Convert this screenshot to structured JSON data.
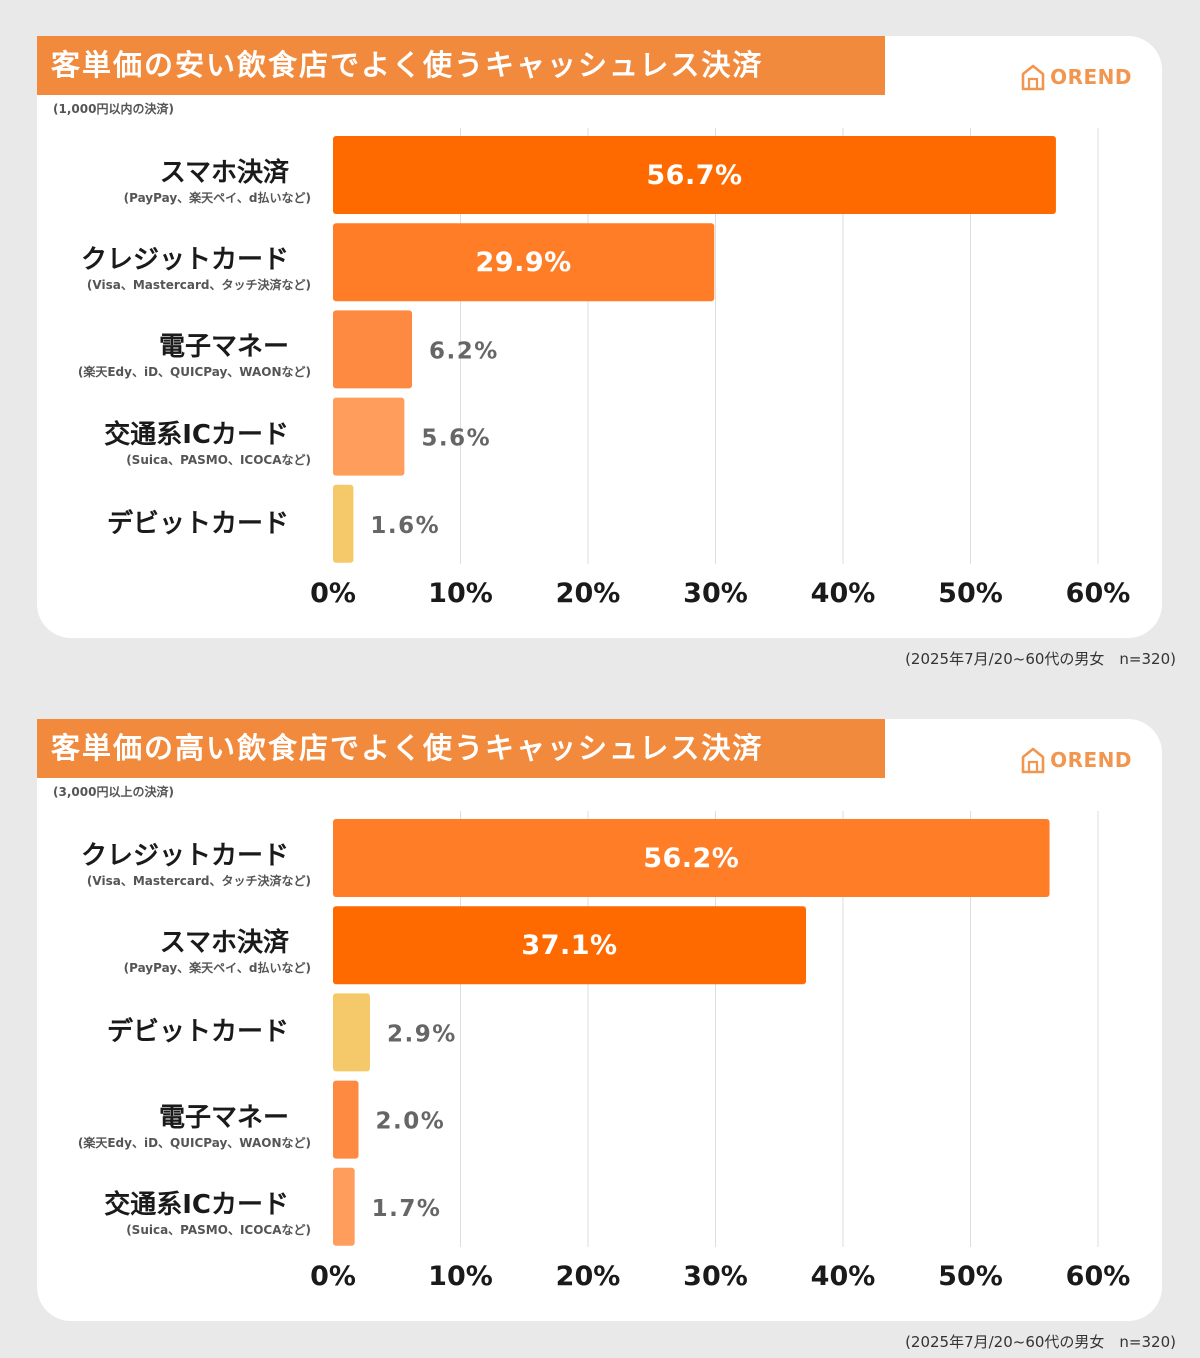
{
  "footnote": "(2025年7月/20~60代の男女　n=320)",
  "logo_text": "OREND",
  "colors": {
    "title_bg": "#f28a3d",
    "logo": "#f2964f",
    "grid": "#dddddd"
  },
  "chart_data": [
    {
      "type": "bar",
      "orientation": "horizontal",
      "title": "客単価の安い飲食店でよく使うキャッシュレス決済",
      "subtitle": "(1,000円以内の決済)",
      "categories": [
        "スマホ決済",
        "クレジットカード",
        "電子マネー",
        "交通系ICカード",
        "デビットカード"
      ],
      "category_notes": [
        "(PayPay、楽天ペイ、d払いなど)",
        "(Visa、Mastercard、タッチ決済など)",
        "(楽天Edy、iD、QUICPay、WAONなど)",
        "(Suica、PASMO、ICOCAなど)",
        ""
      ],
      "values": [
        56.7,
        29.9,
        6.2,
        5.6,
        1.6
      ],
      "value_labels": [
        "56.7%",
        "29.9%",
        "6.2%",
        "5.6%",
        "1.6%"
      ],
      "bar_colors": [
        "#ff6a00",
        "#ff7d26",
        "#fd8a40",
        "#ff9d5c",
        "#f5c96a"
      ],
      "xlim": [
        0,
        60
      ],
      "xticks": [
        0,
        10,
        20,
        30,
        40,
        50,
        60
      ],
      "xtick_labels": [
        "0%",
        "10%",
        "20%",
        "30%",
        "40%",
        "50%",
        "60%"
      ],
      "grid": true
    },
    {
      "type": "bar",
      "orientation": "horizontal",
      "title": "客単価の高い飲食店でよく使うキャッシュレス決済",
      "subtitle": "(3,000円以上の決済)",
      "categories": [
        "クレジットカード",
        "スマホ決済",
        "デビットカード",
        "電子マネー",
        "交通系ICカード"
      ],
      "category_notes": [
        "(Visa、Mastercard、タッチ決済など)",
        "(PayPay、楽天ペイ、d払いなど)",
        "",
        "(楽天Edy、iD、QUICPay、WAONなど)",
        "(Suica、PASMO、ICOCAなど)"
      ],
      "values": [
        56.2,
        37.1,
        2.9,
        2.0,
        1.7
      ],
      "value_labels": [
        "56.2%",
        "37.1%",
        "2.9%",
        "2.0%",
        "1.7%"
      ],
      "bar_colors": [
        "#ff7d26",
        "#ff6a00",
        "#f5c96a",
        "#fd8a40",
        "#ff9d5c"
      ],
      "xlim": [
        0,
        60
      ],
      "xticks": [
        0,
        10,
        20,
        30,
        40,
        50,
        60
      ],
      "xtick_labels": [
        "0%",
        "10%",
        "20%",
        "30%",
        "40%",
        "50%",
        "60%"
      ],
      "grid": true
    }
  ]
}
